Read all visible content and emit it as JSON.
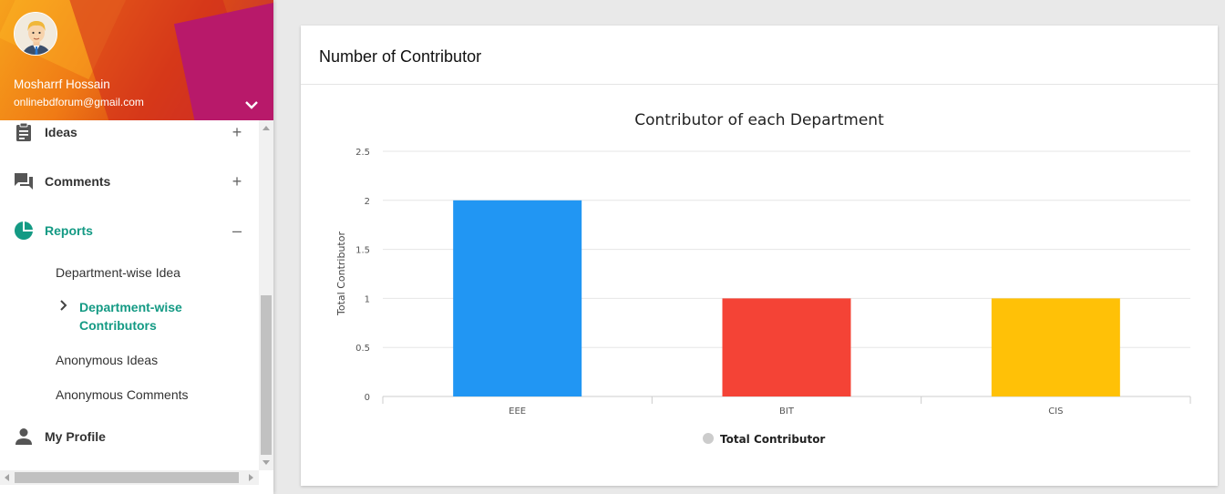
{
  "user": {
    "name": "Mosharrf Hossain",
    "email": "onlinebdforum@gmail.com"
  },
  "menu": {
    "ideas": {
      "label": "Ideas",
      "toggle": "+"
    },
    "comments": {
      "label": "Comments",
      "toggle": "+"
    },
    "reports": {
      "label": "Reports",
      "toggle": "–"
    },
    "reports_sub": {
      "item1": "Department-wise Idea",
      "item2_line1": "Department-wise",
      "item2_line2": "Contributors",
      "item3": "Anonymous Ideas",
      "item4": "Anonymous Comments"
    },
    "profile": {
      "label": "My Profile"
    }
  },
  "card": {
    "title": "Number of Contributor"
  },
  "colors": {
    "accent": "#149a84",
    "bar_eee": "#2196f3",
    "bar_bit": "#f44336",
    "bar_cis": "#ffc107"
  },
  "chart_data": {
    "type": "bar",
    "title": "Contributor of each Department",
    "categories": [
      "EEE",
      "BIT",
      "CIS"
    ],
    "values": [
      2,
      1,
      1
    ],
    "ylabel": "Total Contributor",
    "xlabel": "",
    "ylim": [
      0,
      2.5
    ],
    "yticks": [
      "0",
      "0.5",
      "1",
      "1.5",
      "2",
      "2.5"
    ],
    "legend": [
      "Total Contributor"
    ],
    "legend_position": "bottom-center",
    "grid": true
  }
}
